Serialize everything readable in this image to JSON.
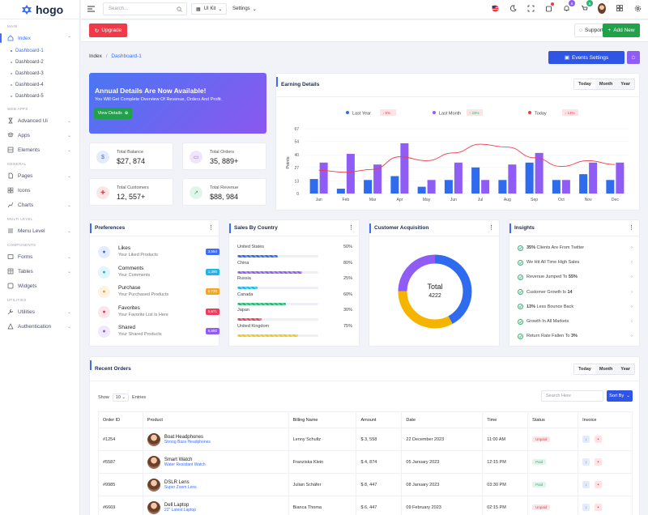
{
  "brand": {
    "name": "hogo"
  },
  "sidebar": {
    "sections": {
      "main": "MAIN",
      "web_apps": "WEB APPS",
      "general": "GENERAL",
      "multi_level": "MULTI LEVEL",
      "components": "COMPONENTS",
      "utilities": "UTILITIES"
    },
    "index": "Index",
    "dashboards": [
      "Dashboard-1",
      "Dashboard-2",
      "Dashboard-3",
      "Dashboard-4",
      "Dashboard-5"
    ],
    "advanced_ui": "Advanced Ui",
    "apps": "Apps",
    "elements": "Elements",
    "pages": "Pages",
    "icons": "Icons",
    "charts": "Charts",
    "menu_level": "Menu Level",
    "forms": "Forms",
    "tables": "Tables",
    "widgets": "Widgets",
    "utilities": "Utilities",
    "authentication": "Authentication"
  },
  "topbar": {
    "search_placeholder": "Search...",
    "ui_kit": "UI Kit",
    "settings": "Settings",
    "notif_count": "9",
    "cart_count": "5"
  },
  "header": {
    "upgrade": "Upgrade",
    "support": "Support",
    "add_new": "Add New",
    "breadcrumb_root": "Index",
    "breadcrumb_current": "Dashboard-1",
    "events_settings": "Events Settings"
  },
  "promo": {
    "title": "Annual Details Are Now Available!",
    "subtitle": "You Will Get Complete Overview Of Revenue, Orders And Profit.",
    "button": "View Details"
  },
  "stats": [
    {
      "label": "Total Balance",
      "value": "$27, 874"
    },
    {
      "label": "Total Orders",
      "value": "35, 889+"
    },
    {
      "label": "Total Customers",
      "value": "12, 557+"
    },
    {
      "label": "Total Revenue",
      "value": "$88, 984"
    }
  ],
  "earning": {
    "title": "Earning Details",
    "periods": [
      "Today",
      "Month",
      "Year"
    ]
  },
  "chart_data": {
    "type": "bar",
    "ylabel": "Points",
    "ylim": [
      0,
      67
    ],
    "yticks": [
      0,
      13,
      27,
      40,
      54,
      67
    ],
    "categories": [
      "Jan",
      "Feb",
      "Mar",
      "Apr",
      "May",
      "Jun",
      "Jul",
      "Aug",
      "Sep",
      "Oct",
      "Nov",
      "Dec"
    ],
    "series": [
      {
        "name": "Last Year",
        "color": "#2f6bef",
        "values": [
          15,
          5,
          14,
          18,
          7,
          14,
          27,
          14,
          32,
          14,
          20,
          14
        ],
        "delta": "5%"
      },
      {
        "name": "Last Month",
        "color": "#8f5cf5",
        "values": [
          32,
          41,
          30,
          52,
          14,
          32,
          14,
          30,
          42,
          14,
          32,
          32
        ],
        "delta": "23%"
      },
      {
        "name": "Today",
        "color": "#ef3b49",
        "values": [
          24,
          22,
          25,
          38,
          34,
          42,
          51,
          48,
          37,
          28,
          34,
          30
        ],
        "delta": "13%"
      }
    ]
  },
  "preferences": {
    "title": "Preferences",
    "items": [
      {
        "title": "Likes",
        "sub": "Your Liked Products",
        "badge": "3,554",
        "color": "#3e6ef5"
      },
      {
        "title": "Comments",
        "sub": "Your Comments",
        "badge": "1,390",
        "color": "#1eb6e8"
      },
      {
        "title": "Purchase",
        "sub": "Your Purchased Products",
        "badge": "6,720",
        "color": "#f5a623"
      },
      {
        "title": "Favorites",
        "sub": "Your Favorite List Is Here",
        "badge": "5,671",
        "color": "#ef3b5c"
      },
      {
        "title": "Shared",
        "sub": "Your Shared Products",
        "badge": "6,880",
        "color": "#8f5cf5"
      }
    ]
  },
  "countries": {
    "title": "Sales By Country",
    "items": [
      {
        "name": "United States",
        "pct": "50%",
        "value": 50,
        "color": "#2f6bef"
      },
      {
        "name": "China",
        "pct": "80%",
        "value": 80,
        "color": "#8f5cf5"
      },
      {
        "name": "Russia",
        "pct": "25%",
        "value": 25,
        "color": "#1eb6e8"
      },
      {
        "name": "Canada",
        "pct": "60%",
        "value": 60,
        "color": "#2bb673"
      },
      {
        "name": "Japan",
        "pct": "30%",
        "value": 30,
        "color": "#ef3b5c"
      },
      {
        "name": "United Kingdom",
        "pct": "75%",
        "value": 75,
        "color": "#f5c518"
      }
    ]
  },
  "acquisition": {
    "title": "Customer Acquisition",
    "total_label": "Total",
    "total_value": "4222",
    "segments": [
      {
        "value": 42,
        "color": "#2f6bef"
      },
      {
        "value": 33,
        "color": "#f5b400"
      },
      {
        "value": 25,
        "color": "#8f5cf5"
      }
    ]
  },
  "insights": {
    "title": "Insights",
    "items": [
      {
        "bold": "35%",
        "text": " Clients Are From Twitter"
      },
      {
        "bold": "",
        "text": "We Hit All Time High Sales"
      },
      {
        "bold": "",
        "text": "Revenue Jumped To ",
        "bold2": "55%"
      },
      {
        "bold": "",
        "text": "Customer Growth Is ",
        "bold2": "14"
      },
      {
        "bold": "13%",
        "text": " Less Bounce Back"
      },
      {
        "bold": "",
        "text": "Growth In All Markets"
      },
      {
        "bold": "",
        "text": "Return Rate Fallen To ",
        "bold2": "3%"
      }
    ]
  },
  "orders": {
    "title": "Recent Orders",
    "periods": [
      "Today",
      "Month",
      "Year"
    ],
    "show": "Show",
    "entries_value": "10",
    "entries": "Entries",
    "search_placeholder": "Search Here",
    "sort_by": "Sort By",
    "columns": [
      "Order ID",
      "Product",
      "Billing Name",
      "Amount",
      "Date",
      "Time",
      "Status",
      "Invoice"
    ],
    "rows": [
      {
        "id": "#1254",
        "product": "Boat Headphones",
        "sub": "Strong Bass Headphones",
        "name": "Lenny Schultz",
        "amount": "$ 3, 558",
        "date": "22 December 2023",
        "time": "11:00 AM",
        "status": "Unpaid"
      },
      {
        "id": "#5587",
        "product": "Smart Watch",
        "sub": "Water Resistant Watch",
        "name": "Franziska Klein",
        "amount": "$ 4, 874",
        "date": "05 January 2023",
        "time": "12:15 PM",
        "status": "Paid"
      },
      {
        "id": "#9985",
        "product": "DSLR Lens",
        "sub": "Super Zoom Lens",
        "name": "Julian Schäfer",
        "amount": "$ 8, 447",
        "date": "08 January 2023",
        "time": "03:30 PM",
        "status": "Paid"
      },
      {
        "id": "#6669",
        "product": "Dell Laptop",
        "sub": "22\" Latest Laptop",
        "name": "Bianca Thoma",
        "amount": "$ 6, 447",
        "date": "09 February 2023",
        "time": "02:15 PM",
        "status": "Unpaid"
      }
    ]
  }
}
